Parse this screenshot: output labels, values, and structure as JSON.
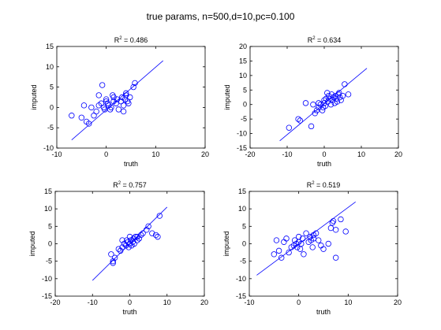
{
  "figure": {
    "title": "true params, n=500,d=10,pc=0.100"
  },
  "colors": {
    "marker": "#0000ff",
    "axis": "#000000",
    "background": "#ffffff"
  },
  "chart_data": [
    {
      "type": "scatter",
      "title_prefix": "R",
      "title_sup": "2",
      "title_suffix": " = 0.486",
      "xlabel": "truth",
      "ylabel": "imputed",
      "xlim": [
        -10,
        20
      ],
      "ylim": [
        -10,
        15
      ],
      "xticks": [
        -10,
        0,
        10,
        20
      ],
      "yticks": [
        -10,
        -5,
        0,
        5,
        10,
        15
      ],
      "fit_line": [
        [
          -7,
          -8
        ],
        [
          11.5,
          11.5
        ]
      ],
      "points": [
        [
          -7,
          -2
        ],
        [
          -5,
          -2.5
        ],
        [
          -4.5,
          0.5
        ],
        [
          -4,
          -3.5
        ],
        [
          -3.5,
          -4
        ],
        [
          -3,
          0
        ],
        [
          -2.5,
          -2
        ],
        [
          -2,
          -1
        ],
        [
          -1.5,
          3
        ],
        [
          -1,
          1
        ],
        [
          -0.8,
          5.5
        ],
        [
          -0.5,
          0
        ],
        [
          -0.3,
          -0.5
        ],
        [
          0,
          1.5
        ],
        [
          0,
          2
        ],
        [
          0.3,
          1
        ],
        [
          0.5,
          0.5
        ],
        [
          0.8,
          -0.5
        ],
        [
          1,
          0
        ],
        [
          1.3,
          3
        ],
        [
          1.5,
          1.5
        ],
        [
          2,
          1
        ],
        [
          2.2,
          2
        ],
        [
          2.5,
          -0.5
        ],
        [
          3,
          1.5
        ],
        [
          3.2,
          2.5
        ],
        [
          3.5,
          0.5
        ],
        [
          3.8,
          2
        ],
        [
          4,
          3
        ],
        [
          4,
          3.5
        ],
        [
          4.3,
          1.5
        ],
        [
          4.5,
          1
        ],
        [
          4.8,
          2.5
        ],
        [
          3.5,
          -1
        ],
        [
          5.5,
          5
        ],
        [
          5.8,
          6
        ],
        [
          1.5,
          2.5
        ],
        [
          -1.5,
          0.5
        ]
      ]
    },
    {
      "type": "scatter",
      "title_prefix": "R",
      "title_sup": "2",
      "title_suffix": " = 0.634",
      "xlabel": "truth",
      "ylabel": "imputed",
      "xlim": [
        -20,
        20
      ],
      "ylim": [
        -15,
        20
      ],
      "xticks": [
        -20,
        -10,
        0,
        10,
        20
      ],
      "yticks": [
        -15,
        -10,
        -5,
        0,
        5,
        10,
        15,
        20
      ],
      "fit_line": [
        [
          -12,
          -12.5
        ],
        [
          11.5,
          12.5
        ]
      ],
      "points": [
        [
          -9.5,
          -8
        ],
        [
          -7,
          -5
        ],
        [
          -6.5,
          -5.5
        ],
        [
          -5,
          0.5
        ],
        [
          -3.5,
          -7.5
        ],
        [
          -3,
          0
        ],
        [
          -2.5,
          -3
        ],
        [
          -2,
          -2
        ],
        [
          -1.5,
          -1
        ],
        [
          -1,
          0
        ],
        [
          -0.5,
          -2
        ],
        [
          -0.3,
          -1
        ],
        [
          0,
          0.5
        ],
        [
          0,
          1.5
        ],
        [
          0.3,
          -0.5
        ],
        [
          0.5,
          2
        ],
        [
          0.8,
          4
        ],
        [
          1,
          1
        ],
        [
          1.2,
          3
        ],
        [
          1.5,
          2
        ],
        [
          1.8,
          0
        ],
        [
          2,
          3.5
        ],
        [
          2.2,
          1.5
        ],
        [
          2.5,
          2.5
        ],
        [
          2.8,
          0.5
        ],
        [
          3,
          3
        ],
        [
          3.2,
          2
        ],
        [
          3.5,
          1
        ],
        [
          3.8,
          3.5
        ],
        [
          4,
          4
        ],
        [
          4.2,
          2.5
        ],
        [
          4.5,
          1.5
        ],
        [
          5,
          3
        ],
        [
          5.5,
          7
        ],
        [
          6.5,
          3.5
        ],
        [
          -1.5,
          0.5
        ]
      ]
    },
    {
      "type": "scatter",
      "title_prefix": "R",
      "title_sup": "2",
      "title_suffix": " = 0.757",
      "xlabel": "truth",
      "ylabel": "imputed",
      "xlim": [
        -20,
        20
      ],
      "ylim": [
        -15,
        15
      ],
      "xticks": [
        -20,
        -10,
        0,
        10,
        20
      ],
      "yticks": [
        -15,
        -10,
        -5,
        0,
        5,
        10,
        15
      ],
      "fit_line": [
        [
          -10,
          -10.5
        ],
        [
          10,
          10.5
        ]
      ],
      "points": [
        [
          -5,
          -3
        ],
        [
          -4.5,
          -5
        ],
        [
          -4.5,
          -5.5
        ],
        [
          -4,
          -4
        ],
        [
          -3,
          -1.5
        ],
        [
          -2.5,
          -2
        ],
        [
          -2,
          -1
        ],
        [
          -2,
          1
        ],
        [
          -1.5,
          0
        ],
        [
          -1,
          -0.5
        ],
        [
          -0.8,
          1
        ],
        [
          -0.5,
          0.5
        ],
        [
          -0.3,
          -1
        ],
        [
          0,
          0
        ],
        [
          0,
          2
        ],
        [
          0.3,
          1
        ],
        [
          0.5,
          -0.5
        ],
        [
          0.8,
          0.5
        ],
        [
          1,
          1.5
        ],
        [
          1.2,
          0
        ],
        [
          1.5,
          2
        ],
        [
          2,
          1
        ],
        [
          2,
          2
        ],
        [
          2.5,
          1.5
        ],
        [
          3,
          2.5
        ],
        [
          3.5,
          3
        ],
        [
          4.5,
          4
        ],
        [
          5,
          5
        ],
        [
          6,
          3
        ],
        [
          7,
          2.5
        ],
        [
          7.5,
          2
        ],
        [
          8,
          8
        ]
      ]
    },
    {
      "type": "scatter",
      "title_prefix": "R",
      "title_sup": "2",
      "title_suffix": " = 0.519",
      "xlabel": "truth",
      "ylabel": "imputed",
      "xlim": [
        -10,
        20
      ],
      "ylim": [
        -15,
        15
      ],
      "xticks": [
        -10,
        0,
        10,
        20
      ],
      "yticks": [
        -15,
        -10,
        -5,
        0,
        5,
        10,
        15
      ],
      "fit_line": [
        [
          -8.5,
          -9
        ],
        [
          11.5,
          12
        ]
      ],
      "points": [
        [
          -5,
          -3
        ],
        [
          -4.5,
          1
        ],
        [
          -4,
          -2
        ],
        [
          -3.5,
          -4
        ],
        [
          -3,
          0.5
        ],
        [
          -2.5,
          1.5
        ],
        [
          -2,
          -2.5
        ],
        [
          -1.5,
          -1
        ],
        [
          -1,
          -0.5
        ],
        [
          -0.8,
          1
        ],
        [
          -0.5,
          0
        ],
        [
          -0.3,
          -1
        ],
        [
          0,
          0.5
        ],
        [
          0,
          2
        ],
        [
          0.3,
          -1.5
        ],
        [
          0.5,
          0
        ],
        [
          0.8,
          1.5
        ],
        [
          1,
          -3
        ],
        [
          1.5,
          3
        ],
        [
          2,
          0.5
        ],
        [
          2.3,
          2
        ],
        [
          2.5,
          1
        ],
        [
          2.8,
          -1
        ],
        [
          3,
          2.5
        ],
        [
          3,
          1.5
        ],
        [
          3.5,
          3
        ],
        [
          4,
          1
        ],
        [
          4.5,
          -0.5
        ],
        [
          5,
          -1.5
        ],
        [
          6,
          0
        ],
        [
          6.5,
          4.5
        ],
        [
          6.8,
          6
        ],
        [
          7,
          6.5
        ],
        [
          7.5,
          4
        ],
        [
          7.5,
          -4
        ],
        [
          8.5,
          7
        ],
        [
          9.5,
          3.5
        ]
      ]
    }
  ]
}
